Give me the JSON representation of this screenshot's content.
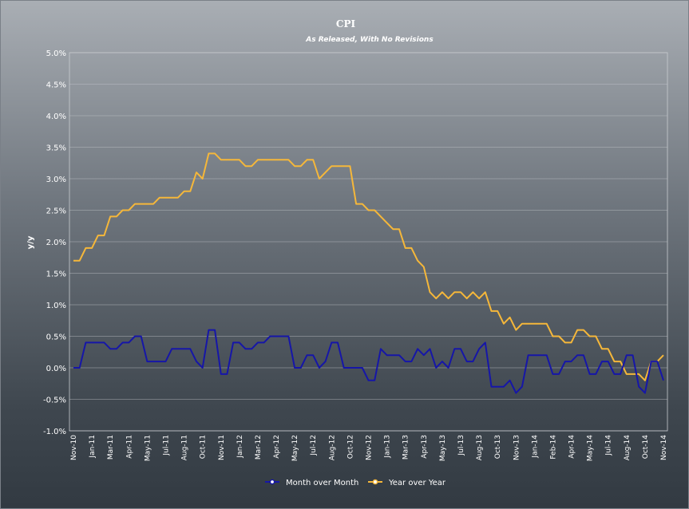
{
  "chart_data": {
    "type": "line",
    "title": "CPI",
    "subtitle": "As Released, With No Revisions",
    "xlabel": "",
    "ylabel": "y/y",
    "ylim": [
      -1.0,
      5.0
    ],
    "yticks": [
      "5.0%",
      "4.5%",
      "4.0%",
      "3.5%",
      "3.0%",
      "2.5%",
      "2.0%",
      "1.5%",
      "1.0%",
      "0.5%",
      "0.0%",
      "-0.5%",
      "-1.0%"
    ],
    "xticks": [
      "Nov-10",
      "Jan-11",
      "Mar-11",
      "Apr-11",
      "May-11",
      "Jul-11",
      "Aug-11",
      "Oct-11",
      "Nov-11",
      "Jan-12",
      "Mar-12",
      "Apr-12",
      "May-12",
      "Jul-12",
      "Aug-12",
      "Oct-12",
      "Nov-12",
      "Jan-13",
      "Mar-13",
      "Apr-13",
      "May-13",
      "Jul-13",
      "Aug-13",
      "Oct-13",
      "Nov-13",
      "Jan-14",
      "Feb-14",
      "Apr-14",
      "May-14",
      "Jul-14",
      "Aug-14",
      "Oct-14",
      "Nov-14"
    ],
    "grid": true,
    "legend_position": "bottom",
    "series": [
      {
        "name": "Month over Month",
        "color": "#1616a8",
        "values": [
          0.0,
          0.0,
          0.4,
          0.4,
          0.4,
          0.4,
          0.3,
          0.3,
          0.4,
          0.4,
          0.5,
          0.5,
          0.1,
          0.1,
          0.1,
          0.1,
          0.3,
          0.3,
          0.3,
          0.3,
          0.1,
          0.0,
          0.6,
          0.6,
          -0.1,
          -0.1,
          0.4,
          0.4,
          0.3,
          0.3,
          0.4,
          0.4,
          0.5,
          0.5,
          0.5,
          0.5,
          0.0,
          0.0,
          0.2,
          0.2,
          0.0,
          0.1,
          0.4,
          0.4,
          0.0,
          0.0,
          0.0,
          0.0,
          -0.2,
          -0.2,
          0.3,
          0.2,
          0.2,
          0.2,
          0.1,
          0.1,
          0.3,
          0.2,
          0.3,
          0.0,
          0.1,
          0.0,
          0.3,
          0.3,
          0.1,
          0.1,
          0.3,
          0.4,
          -0.3,
          -0.3,
          -0.3,
          -0.2,
          -0.4,
          -0.3,
          0.2,
          0.2,
          0.2,
          0.2,
          -0.1,
          -0.1,
          0.1,
          0.1,
          0.2,
          0.2,
          -0.1,
          -0.1,
          0.1,
          0.1,
          -0.1,
          -0.1,
          0.2,
          0.2,
          -0.3,
          -0.4,
          0.1,
          0.1,
          -0.2
        ]
      },
      {
        "name": "Year over Year",
        "color": "#f5b73a",
        "values": [
          1.7,
          1.7,
          1.9,
          1.9,
          2.1,
          2.1,
          2.4,
          2.4,
          2.5,
          2.5,
          2.6,
          2.6,
          2.6,
          2.6,
          2.7,
          2.7,
          2.7,
          2.7,
          2.8,
          2.8,
          3.1,
          3.0,
          3.4,
          3.4,
          3.3,
          3.3,
          3.3,
          3.3,
          3.2,
          3.2,
          3.3,
          3.3,
          3.3,
          3.3,
          3.3,
          3.3,
          3.2,
          3.2,
          3.3,
          3.3,
          3.0,
          3.1,
          3.2,
          3.2,
          3.2,
          3.2,
          2.6,
          2.6,
          2.5,
          2.5,
          2.4,
          2.3,
          2.2,
          2.2,
          1.9,
          1.9,
          1.7,
          1.6,
          1.2,
          1.1,
          1.2,
          1.1,
          1.2,
          1.2,
          1.1,
          1.2,
          1.1,
          1.2,
          0.9,
          0.9,
          0.7,
          0.8,
          0.6,
          0.7,
          0.7,
          0.7,
          0.7,
          0.7,
          0.5,
          0.5,
          0.4,
          0.4,
          0.6,
          0.6,
          0.5,
          0.5,
          0.3,
          0.3,
          0.1,
          0.1,
          -0.1,
          -0.1,
          -0.1,
          -0.2,
          0.1,
          0.1,
          0.2
        ]
      }
    ]
  }
}
